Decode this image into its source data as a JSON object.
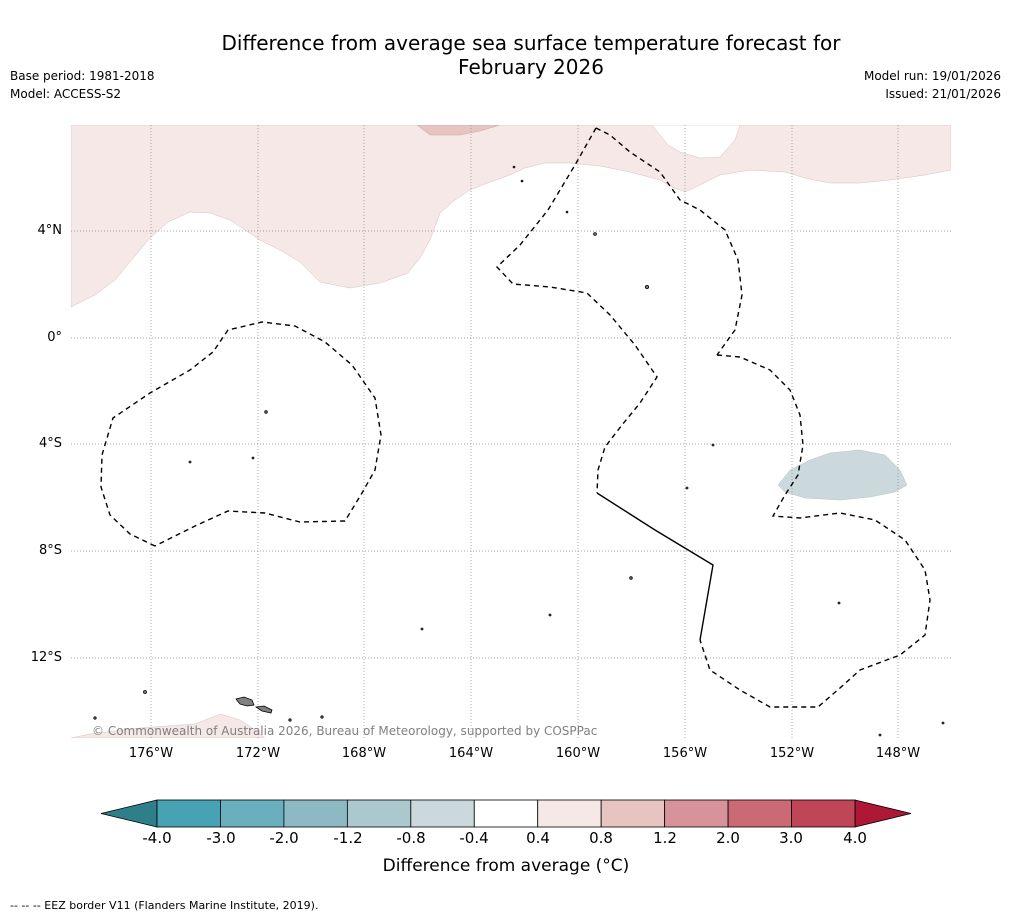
{
  "title": {
    "line1": "Difference from average sea surface temperature forecast for",
    "line2": "February 2026"
  },
  "meta": {
    "base_period": "Base period: 1981-2018",
    "model": "Model: ACCESS-S2",
    "model_run": "Model run: 19/01/2026",
    "issued": "Issued: 21/01/2026"
  },
  "axes": {
    "lat_ticks": [
      "4°N",
      "0°",
      "4°S",
      "8°S",
      "12°S"
    ],
    "lon_ticks": [
      "176°W",
      "172°W",
      "168°W",
      "164°W",
      "160°W",
      "156°W",
      "152°W",
      "148°W"
    ]
  },
  "colorbar": {
    "title": "Difference from average (°C)",
    "labels": [
      "-4.0",
      "-3.0",
      "-2.0",
      "-1.2",
      "-0.8",
      "-0.4",
      "0.4",
      "0.8",
      "1.2",
      "2.0",
      "3.0",
      "4.0"
    ],
    "colors": [
      "#47a3b3",
      "#6aafbd",
      "#8db9c4",
      "#aac8ce",
      "#cbd9dc",
      "#ffffff",
      "#f5e8e6",
      "#e7c4c0",
      "#d8939a",
      "#cb6a75",
      "#be4656"
    ],
    "under_color": "#2e7f8a",
    "over_color": "#ae1735"
  },
  "copyright": "© Commonwealth of Australia 2026, Bureau of Meteorology, supported by COSPPac",
  "footnote": "--  --  -- EEZ border V11 (Flanders Marine Institute, 2019)."
}
